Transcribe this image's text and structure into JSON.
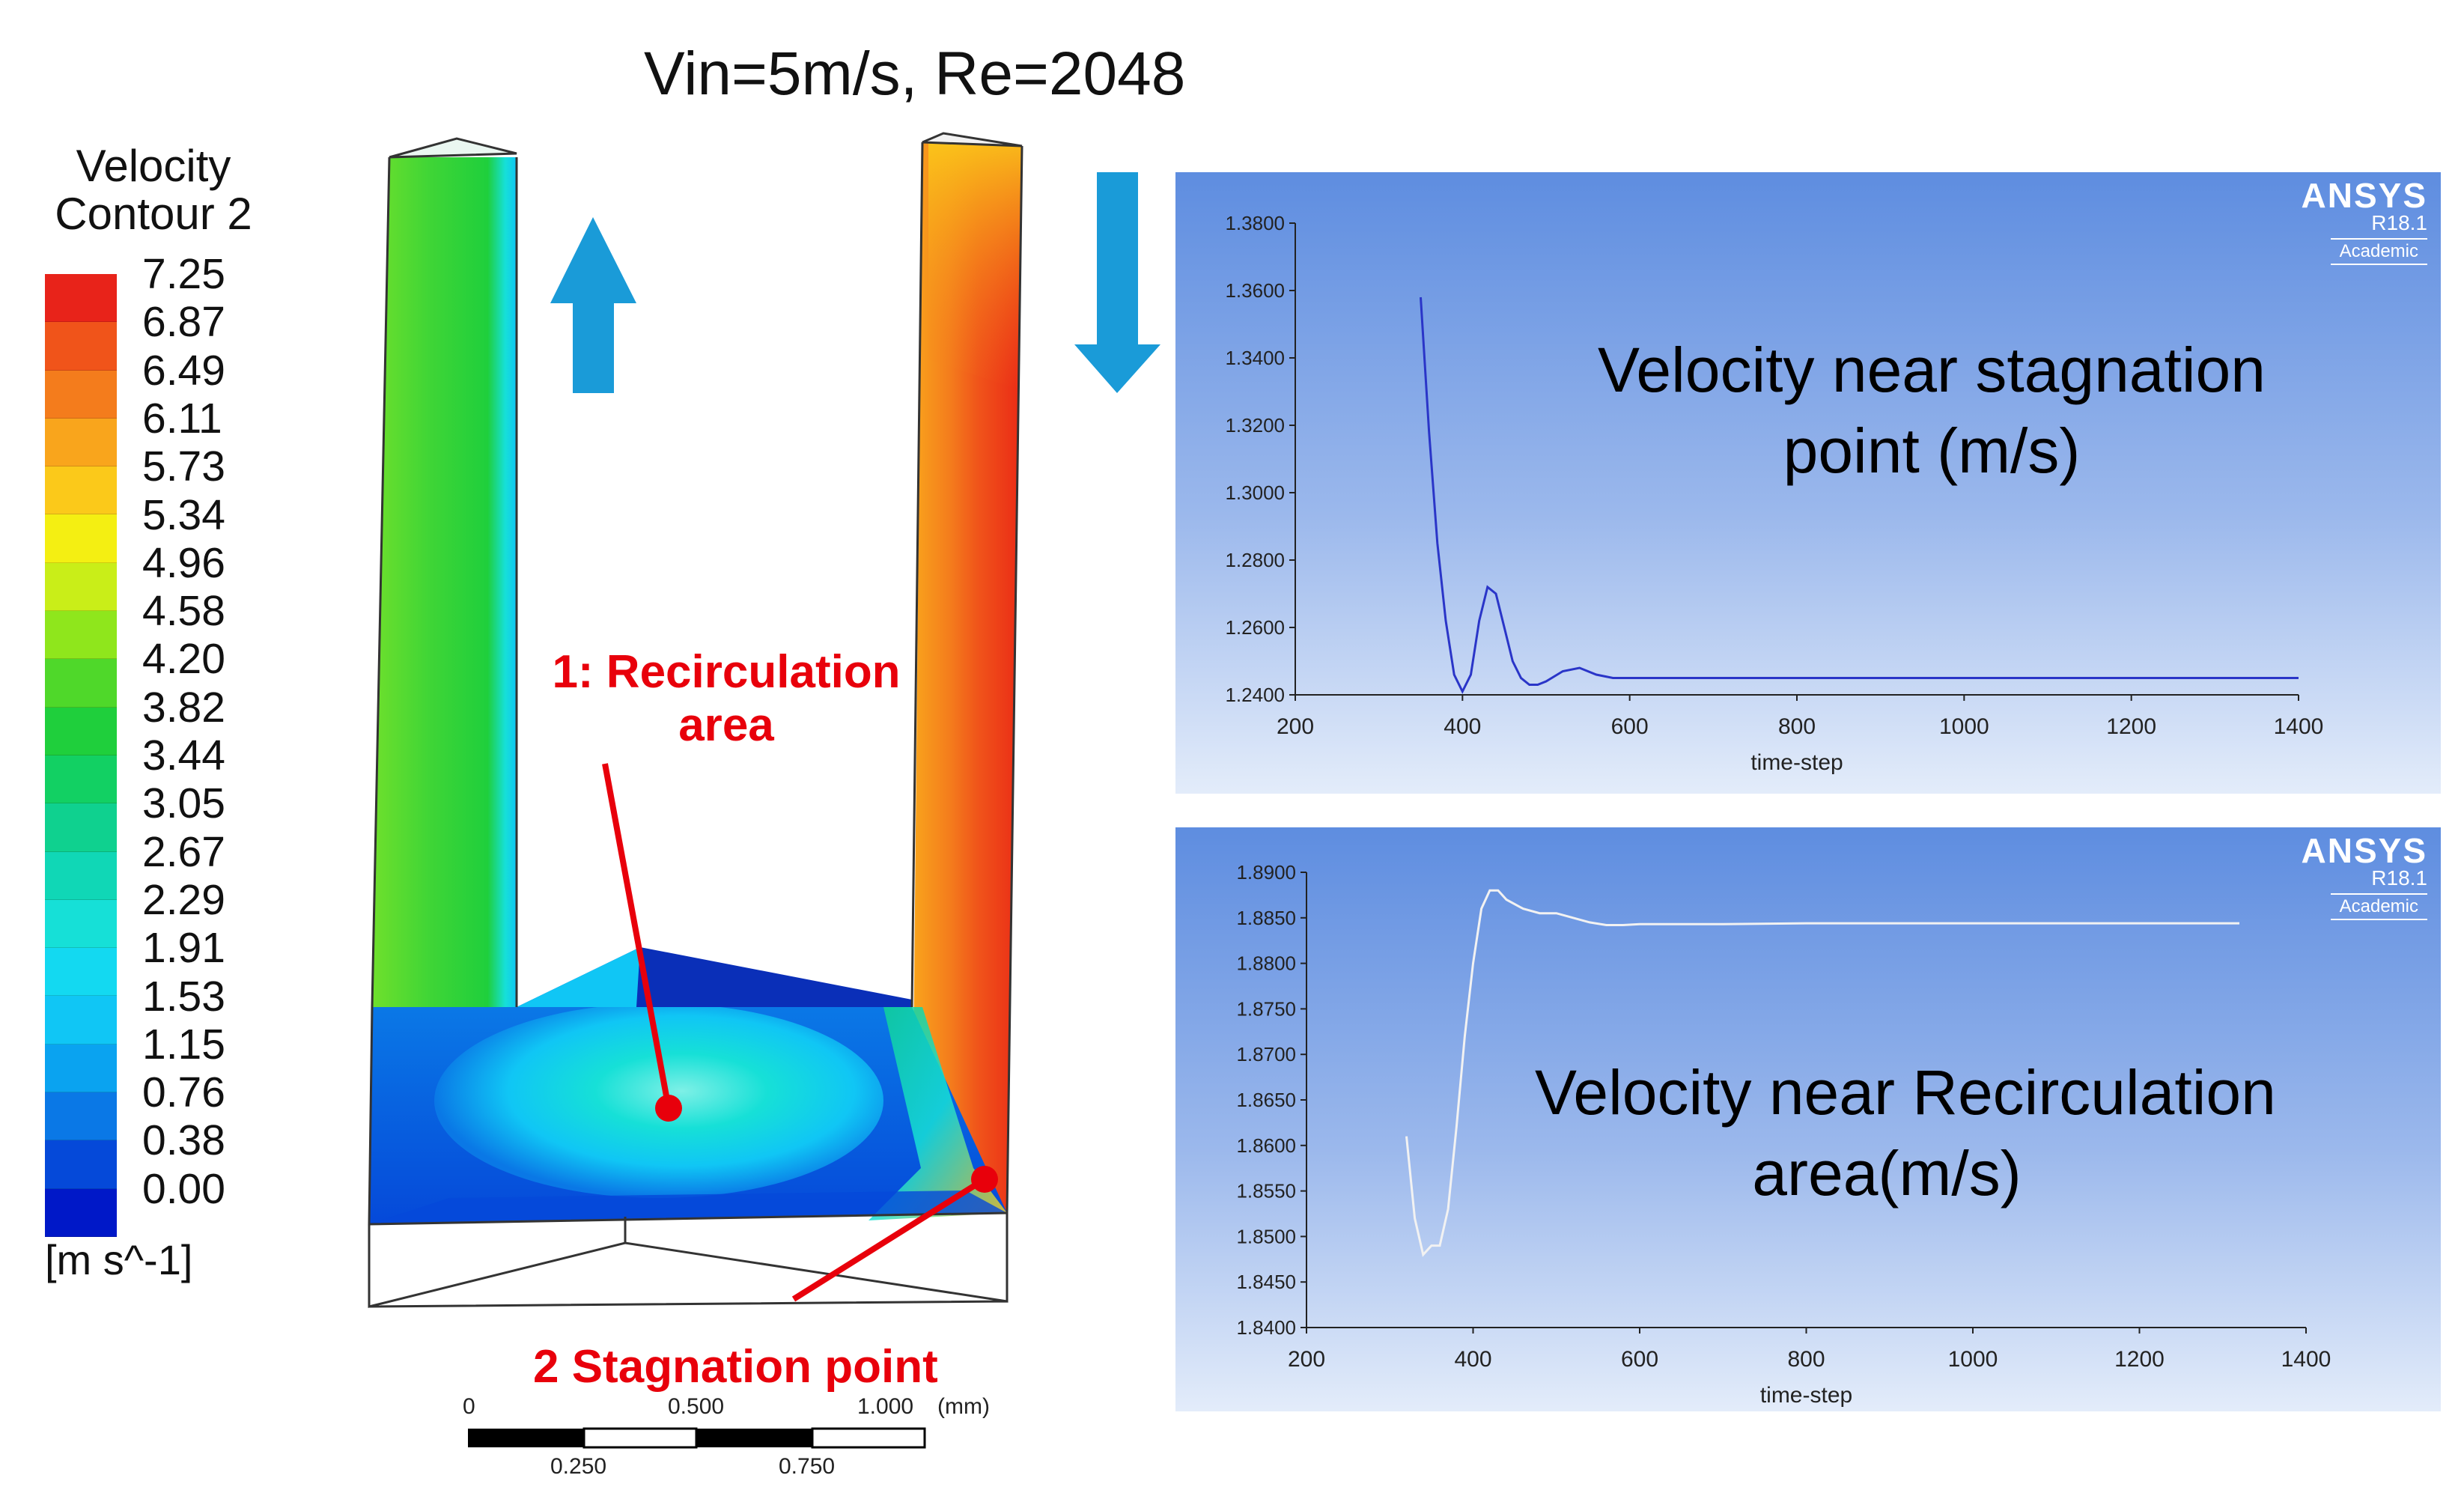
{
  "title": "Vin=5m/s, Re=2048",
  "legend": {
    "title_line1": "Velocity",
    "title_line2": "Contour 2",
    "levels": [
      "7.25",
      "6.87",
      "6.49",
      "6.11",
      "5.73",
      "5.34",
      "4.96",
      "4.58",
      "4.20",
      "3.82",
      "3.44",
      "3.05",
      "2.67",
      "2.29",
      "1.91",
      "1.53",
      "1.15",
      "0.76",
      "0.38",
      "0.00"
    ],
    "colors": [
      "#e8231a",
      "#f0541a",
      "#f47c1c",
      "#f9a51c",
      "#fbc91a",
      "#f4ef12",
      "#c9ee18",
      "#8fe61c",
      "#4fd82a",
      "#1fcf3c",
      "#12d063",
      "#0fd18f",
      "#10d7b6",
      "#16e0d7",
      "#13d9f1",
      "#10c6f5",
      "#0aa3f0",
      "#0a78e6",
      "#0549d9",
      "#0018c8"
    ],
    "unit": "[m s^-1]"
  },
  "annotations": {
    "recirculation_line1": "1: Recirculation",
    "recirculation_line2": "area",
    "stagnation": "2 Stagnation point"
  },
  "scale_bar": {
    "top_labels": [
      "0",
      "0.500",
      "1.000",
      "(mm)"
    ],
    "bottom_labels": [
      "0.250",
      "0.750"
    ]
  },
  "flow_arrow_color": "#1a9bd8",
  "chart_data": [
    {
      "type": "line",
      "title": "Velocity near stagnation point (m/s)",
      "title_line1": "Velocity near stagnation",
      "title_line2": "point (m/s)",
      "xlabel": "time-step",
      "ylabel": "",
      "xlim": [
        200,
        1400
      ],
      "ylim": [
        1.24,
        1.38
      ],
      "xticks": [
        "200",
        "400",
        "600",
        "800",
        "1000",
        "1200",
        "1400"
      ],
      "yticks": [
        "1.2400",
        "1.2600",
        "1.2800",
        "1.3000",
        "1.3200",
        "1.3400",
        "1.3600",
        "1.3800"
      ],
      "line_color": "#2a35c8",
      "series": [
        {
          "name": "velocity",
          "x": [
            350,
            360,
            370,
            380,
            390,
            400,
            410,
            420,
            430,
            440,
            450,
            460,
            470,
            480,
            490,
            500,
            520,
            540,
            560,
            580,
            600,
            700,
            800,
            1000,
            1200,
            1400
          ],
          "y": [
            1.358,
            1.318,
            1.285,
            1.262,
            1.246,
            1.241,
            1.246,
            1.262,
            1.272,
            1.27,
            1.26,
            1.25,
            1.245,
            1.243,
            1.243,
            1.244,
            1.247,
            1.248,
            1.246,
            1.245,
            1.245,
            1.245,
            1.245,
            1.245,
            1.245,
            1.245
          ]
        }
      ],
      "branding": {
        "brand": "ANSYS",
        "version": "R18.1",
        "edition": "Academic"
      }
    },
    {
      "type": "line",
      "title": "Velocity near Recirculation area(m/s)",
      "title_line1": "Velocity near Recirculation",
      "title_line2": "area(m/s)",
      "xlabel": "time-step",
      "ylabel": "",
      "xlim": [
        200,
        1400
      ],
      "ylim": [
        1.84,
        1.89
      ],
      "xticks": [
        "200",
        "400",
        "600",
        "800",
        "1000",
        "1200",
        "1400"
      ],
      "yticks": [
        "1.8400",
        "1.8450",
        "1.8500",
        "1.8550",
        "1.8600",
        "1.8650",
        "1.8700",
        "1.8750",
        "1.8800",
        "1.8850",
        "1.8900"
      ],
      "line_color": "#f2f2f2",
      "series": [
        {
          "name": "velocity",
          "x": [
            320,
            330,
            340,
            350,
            360,
            370,
            380,
            390,
            400,
            410,
            420,
            430,
            440,
            460,
            480,
            500,
            520,
            540,
            560,
            580,
            600,
            700,
            800,
            1000,
            1200,
            1320
          ],
          "y": [
            1.861,
            1.852,
            1.848,
            1.849,
            1.849,
            1.853,
            1.862,
            1.872,
            1.88,
            1.886,
            1.888,
            1.888,
            1.887,
            1.886,
            1.8855,
            1.8855,
            1.885,
            1.8845,
            1.8842,
            1.8842,
            1.8843,
            1.8843,
            1.8844,
            1.8844,
            1.8844,
            1.8844
          ]
        }
      ],
      "branding": {
        "brand": "ANSYS",
        "version": "R18.1",
        "edition": "Academic"
      }
    }
  ]
}
